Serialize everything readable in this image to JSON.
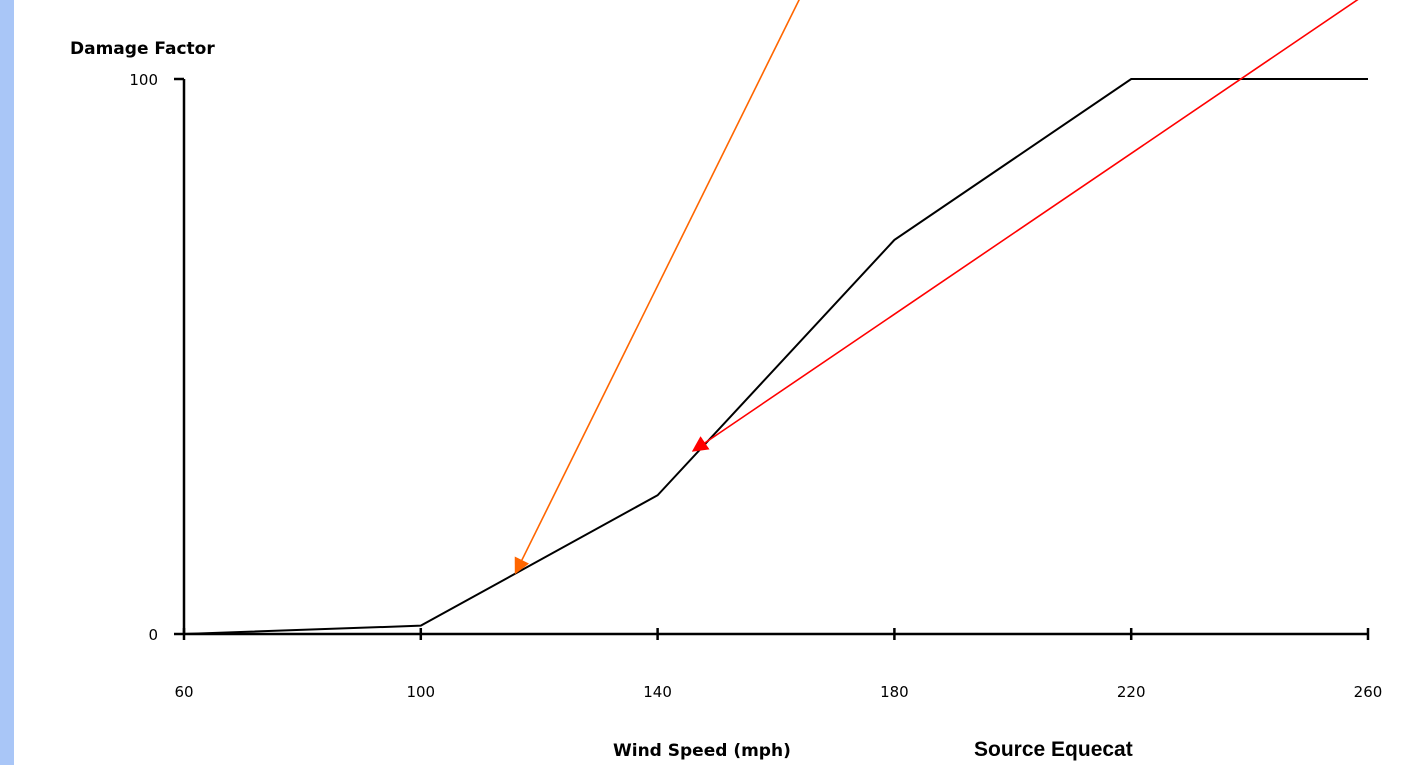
{
  "chart_data": {
    "type": "line",
    "ylabel": "Damage Factor",
    "xlabel": "Wind Speed (mph)",
    "xlim": [
      60,
      260
    ],
    "ylim": [
      0,
      100
    ],
    "xticks": [
      "60",
      "100",
      "140",
      "180",
      "220",
      "260"
    ],
    "yticks": [
      "0",
      "100"
    ],
    "series": [
      {
        "x": [
          60,
          100,
          140,
          180,
          220,
          260
        ],
        "y": [
          0,
          1.5,
          25,
          71,
          100,
          100
        ]
      }
    ],
    "grid": false,
    "annotation": "Source Equecat",
    "arrows": [
      {
        "color": "#ff6600",
        "target": [
          116,
          11
        ]
      },
      {
        "color": "#ff0000",
        "target": [
          146,
          33
        ]
      }
    ]
  },
  "colors": {
    "background_frame": "#a9c6f7",
    "line": "#000000"
  }
}
